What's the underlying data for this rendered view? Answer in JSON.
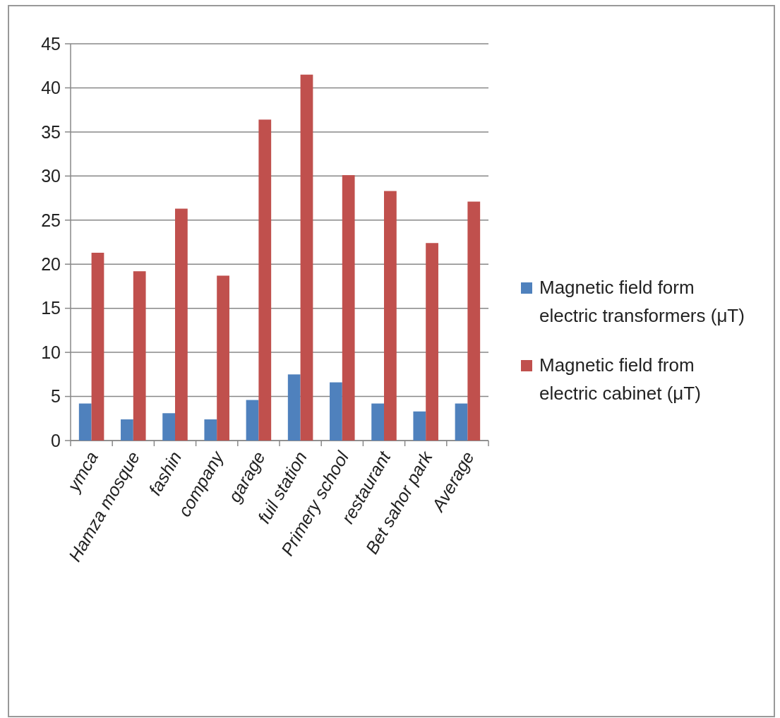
{
  "chart_data": {
    "type": "bar",
    "categories": [
      "ymca",
      "Hamza mosque",
      "fashin",
      "company",
      "garage",
      "fuil station",
      "Primery school",
      "restaurant",
      "Bet sahor park",
      "Average"
    ],
    "series": [
      {
        "name": "Magnetic field form electric transformers (μT)",
        "color": "#4f81bd",
        "values": [
          4.2,
          2.4,
          3.1,
          2.4,
          4.6,
          7.5,
          6.6,
          4.2,
          3.3,
          4.2
        ]
      },
      {
        "name": "Magnetic field from electric cabinet (μT)",
        "color": "#c0504d",
        "values": [
          21.3,
          19.2,
          26.3,
          18.7,
          36.4,
          41.5,
          30.1,
          28.3,
          22.4,
          27.1
        ]
      }
    ],
    "ylim": [
      0,
      45
    ],
    "yticks": [
      0,
      5,
      10,
      15,
      20,
      25,
      30,
      35,
      40,
      45
    ],
    "grid": "y",
    "legend": "right"
  }
}
